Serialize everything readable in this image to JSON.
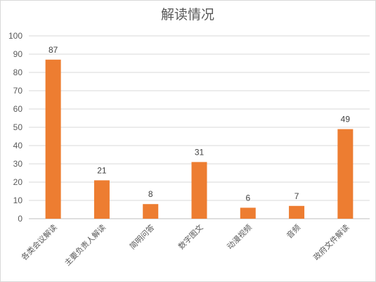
{
  "chart_data": {
    "type": "bar",
    "title": "解读情况",
    "categories": [
      "各类会议解读",
      "主要负责人解读",
      "简明问答",
      "数字图文",
      "动漫视频",
      "音频",
      "政府文件解读"
    ],
    "values": [
      87,
      21,
      8,
      31,
      6,
      7,
      49
    ],
    "ylim": [
      0,
      100
    ],
    "yticks": [
      0,
      10,
      20,
      30,
      40,
      50,
      60,
      70,
      80,
      90,
      100
    ],
    "grid": true,
    "legend": "none",
    "data_labels": true,
    "bar_color": "#ED7D31",
    "grid_color": "#D9D9D9",
    "axis_color": "#BFBFBF"
  }
}
